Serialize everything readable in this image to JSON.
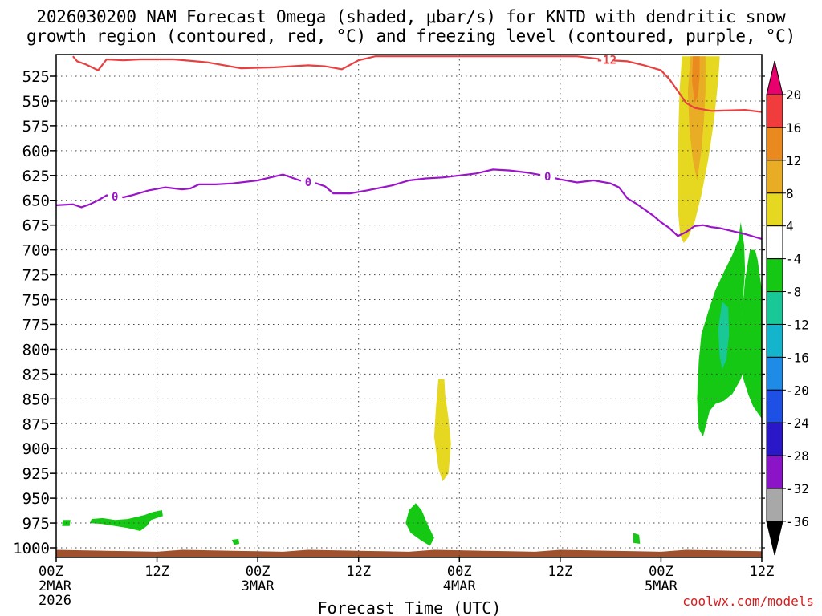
{
  "title": {
    "line1": "2026030200 NAM Forecast Omega (shaded, μbar/s) for KNTD with dendritic snow",
    "line2": "growth region (contoured, red, °C) and freezing level (contoured, purple, °C)"
  },
  "credit": "coolwx.com/models",
  "chart_data": {
    "type": "contour",
    "title": "2026030200 NAM Forecast Omega (shaded, μbar/s) for KNTD with dendritic snow growth region (contoured, red, °C) and freezing level (contoured, purple, °C)",
    "xlabel": "Forecast Time (UTC)",
    "x_ticks": [
      {
        "hour": 0,
        "label": "00Z",
        "sub": "2MAR",
        "sub2": "2026"
      },
      {
        "hour": 12,
        "label": "12Z"
      },
      {
        "hour": 24,
        "label": "00Z",
        "sub": "3MAR"
      },
      {
        "hour": 36,
        "label": "12Z"
      },
      {
        "hour": 48,
        "label": "00Z",
        "sub": "4MAR"
      },
      {
        "hour": 60,
        "label": "12Z"
      },
      {
        "hour": 72,
        "label": "00Z",
        "sub": "5MAR"
      },
      {
        "hour": 84,
        "label": "12Z"
      }
    ],
    "xlim": [
      0,
      84
    ],
    "ylabel": "",
    "y_ticks": [
      525,
      550,
      575,
      600,
      625,
      650,
      675,
      700,
      725,
      750,
      775,
      800,
      825,
      850,
      875,
      900,
      925,
      950,
      975,
      1000
    ],
    "ylim": [
      505,
      1010
    ],
    "grid": true,
    "colorbar": {
      "labels": [
        "20",
        "16",
        "12",
        "8",
        "4",
        "-4",
        "-8",
        "-12",
        "-16",
        "-20",
        "-24",
        "-28",
        "-32",
        "-36"
      ],
      "colors": [
        "#e8006c",
        "#f03c3c",
        "#ea8a1e",
        "#e8ad25",
        "#e6d820",
        "#ffffff",
        "#14c814",
        "#19c896",
        "#14b4cc",
        "#1e8ce6",
        "#1e50e6",
        "#2a18c8",
        "#8c14c8",
        "#a8a8a8",
        "#000000"
      ]
    },
    "contours": [
      {
        "name": "-12",
        "color": "#e84040",
        "label": "-12",
        "points": [
          [
            2,
            505
          ],
          [
            2.5,
            510
          ],
          [
            3.5,
            513
          ],
          [
            5,
            519
          ],
          [
            6,
            508
          ],
          [
            8,
            509
          ],
          [
            10,
            508
          ],
          [
            14,
            508
          ],
          [
            18,
            511
          ],
          [
            22,
            517
          ],
          [
            26,
            516
          ],
          [
            30,
            514
          ],
          [
            32,
            515
          ],
          [
            34,
            518
          ],
          [
            36,
            509
          ],
          [
            38,
            505
          ],
          [
            62,
            505
          ],
          [
            66,
            509
          ],
          [
            68,
            510
          ],
          [
            70,
            514
          ],
          [
            72,
            519
          ],
          [
            73,
            528
          ],
          [
            74,
            540
          ],
          [
            75,
            552
          ],
          [
            76,
            557
          ],
          [
            78,
            560
          ],
          [
            82,
            559
          ],
          [
            84,
            561
          ]
        ]
      },
      {
        "name": "0",
        "color": "#9a14c8",
        "label": "0",
        "points": [
          [
            0,
            655
          ],
          [
            2,
            654
          ],
          [
            3,
            657
          ],
          [
            4,
            654
          ],
          [
            5,
            650
          ],
          [
            6,
            645
          ],
          [
            8,
            647
          ],
          [
            9,
            645
          ],
          [
            11,
            640
          ],
          [
            13,
            637
          ],
          [
            15,
            639
          ],
          [
            16,
            638
          ],
          [
            17,
            634
          ],
          [
            19,
            634
          ],
          [
            21,
            633
          ],
          [
            24,
            630
          ],
          [
            27,
            624
          ],
          [
            29,
            630
          ],
          [
            31,
            633
          ],
          [
            32,
            636
          ],
          [
            33,
            643
          ],
          [
            35,
            643
          ],
          [
            37,
            640
          ],
          [
            40,
            635
          ],
          [
            42,
            630
          ],
          [
            44,
            628
          ],
          [
            46,
            627
          ],
          [
            48,
            625
          ],
          [
            50,
            623
          ],
          [
            52,
            619
          ],
          [
            54,
            620
          ],
          [
            56,
            622
          ],
          [
            58,
            625
          ],
          [
            60,
            629
          ],
          [
            62,
            632
          ],
          [
            64,
            630
          ],
          [
            66,
            633
          ],
          [
            67,
            637
          ],
          [
            68,
            648
          ],
          [
            69,
            653
          ],
          [
            70,
            659
          ],
          [
            71,
            665
          ],
          [
            72,
            672
          ],
          [
            73,
            678
          ],
          [
            74,
            686
          ],
          [
            75,
            682
          ],
          [
            76,
            676
          ],
          [
            77,
            675
          ],
          [
            78,
            677
          ],
          [
            79,
            678
          ],
          [
            80,
            680
          ],
          [
            82,
            684
          ],
          [
            84,
            689
          ]
        ]
      }
    ],
    "shaded_regions": [
      {
        "level": 4,
        "color": "#e6d820",
        "points": [
          [
            74.5,
            505
          ],
          [
            74.2,
            540
          ],
          [
            74.0,
            600
          ],
          [
            74.0,
            660
          ],
          [
            74.3,
            686
          ],
          [
            74.7,
            693
          ],
          [
            75.2,
            688
          ],
          [
            76.0,
            672
          ],
          [
            76.8,
            645
          ],
          [
            77.6,
            610
          ],
          [
            78.3,
            570
          ],
          [
            78.8,
            530
          ],
          [
            79.0,
            505
          ]
        ]
      },
      {
        "level": 8,
        "color": "#e8ad25",
        "points": [
          [
            75.5,
            505
          ],
          [
            75.2,
            540
          ],
          [
            75.4,
            580
          ],
          [
            75.8,
            610
          ],
          [
            76.3,
            630
          ],
          [
            76.8,
            600
          ],
          [
            77.1,
            570
          ],
          [
            77.3,
            540
          ],
          [
            77.3,
            505
          ]
        ]
      },
      {
        "level": 12,
        "color": "#ea8a1e",
        "points": [
          [
            75.8,
            505
          ],
          [
            75.7,
            530
          ],
          [
            76.0,
            552
          ],
          [
            76.4,
            545
          ],
          [
            76.6,
            525
          ],
          [
            76.6,
            505
          ]
        ]
      },
      {
        "level": 4,
        "color": "#e6d820",
        "points": [
          [
            45.5,
            830
          ],
          [
            45.2,
            860
          ],
          [
            45.0,
            888
          ],
          [
            45.5,
            920
          ],
          [
            46.0,
            933
          ],
          [
            46.7,
            925
          ],
          [
            47.0,
            895
          ],
          [
            46.7,
            870
          ],
          [
            46.3,
            845
          ],
          [
            46.2,
            830
          ]
        ]
      },
      {
        "level": -4,
        "color": "#14c814",
        "points": [
          [
            81.5,
            672
          ],
          [
            81.2,
            690
          ],
          [
            80.5,
            705
          ],
          [
            79.5,
            722
          ],
          [
            78.5,
            740
          ],
          [
            77.7,
            760
          ],
          [
            76.8,
            785
          ],
          [
            76.5,
            812
          ],
          [
            76.3,
            850
          ],
          [
            76.5,
            880
          ],
          [
            77.0,
            888
          ],
          [
            77.4,
            875
          ],
          [
            77.8,
            862
          ],
          [
            78.5,
            855
          ],
          [
            79.5,
            852
          ],
          [
            80.5,
            845
          ],
          [
            81.5,
            830
          ],
          [
            82.0,
            818
          ],
          [
            81.6,
            780
          ],
          [
            81.8,
            745
          ],
          [
            82.0,
            720
          ],
          [
            81.9,
            695
          ]
        ]
      },
      {
        "level": -4,
        "color": "#14c814",
        "points": [
          [
            82.6,
            700
          ],
          [
            82.0,
            730
          ],
          [
            81.7,
            760
          ],
          [
            81.5,
            795
          ],
          [
            81.8,
            830
          ],
          [
            82.4,
            846
          ],
          [
            83.0,
            858
          ],
          [
            84.0,
            870
          ],
          [
            84.0,
            740
          ],
          [
            83.5,
            710
          ],
          [
            83.2,
            700
          ]
        ]
      },
      {
        "level": -8,
        "color": "#19c896",
        "points": [
          [
            79.3,
            752
          ],
          [
            78.8,
            780
          ],
          [
            79.0,
            808
          ],
          [
            79.3,
            820
          ],
          [
            79.8,
            810
          ],
          [
            80.1,
            785
          ],
          [
            80.0,
            758
          ]
        ]
      },
      {
        "level": -4,
        "color": "#14c814",
        "points": [
          [
            42.8,
            955
          ],
          [
            42.0,
            962
          ],
          [
            41.6,
            975
          ],
          [
            42.2,
            985
          ],
          [
            43.5,
            993
          ],
          [
            44.5,
            998
          ],
          [
            45.0,
            990
          ],
          [
            44.3,
            978
          ],
          [
            43.5,
            962
          ]
        ]
      },
      {
        "level": -4,
        "color": "#14c814",
        "points": [
          [
            0.8,
            972
          ],
          [
            0.7,
            978
          ],
          [
            1.6,
            978
          ],
          [
            1.7,
            972
          ]
        ]
      },
      {
        "level": -4,
        "color": "#14c814",
        "points": [
          [
            4.2,
            971
          ],
          [
            4.0,
            975
          ],
          [
            5.5,
            976
          ],
          [
            7.0,
            978
          ],
          [
            8.5,
            980
          ],
          [
            10.0,
            983
          ],
          [
            10.8,
            978
          ],
          [
            11.3,
            972
          ],
          [
            12.7,
            968
          ],
          [
            12.6,
            962
          ],
          [
            11.5,
            964
          ],
          [
            10.5,
            967
          ],
          [
            8.5,
            971
          ],
          [
            7.0,
            972
          ],
          [
            5.5,
            970
          ]
        ]
      },
      {
        "level": -4,
        "color": "#14c814",
        "points": [
          [
            20.9,
            992
          ],
          [
            21.2,
            997
          ],
          [
            21.8,
            996
          ],
          [
            21.7,
            991
          ]
        ]
      },
      {
        "level": -4,
        "color": "#14c814",
        "points": [
          [
            68.7,
            985
          ],
          [
            68.7,
            995
          ],
          [
            69.5,
            996
          ],
          [
            69.4,
            987
          ]
        ]
      }
    ],
    "terrain": {
      "color": "#a0522d",
      "surface_pressure": 1003
    }
  }
}
